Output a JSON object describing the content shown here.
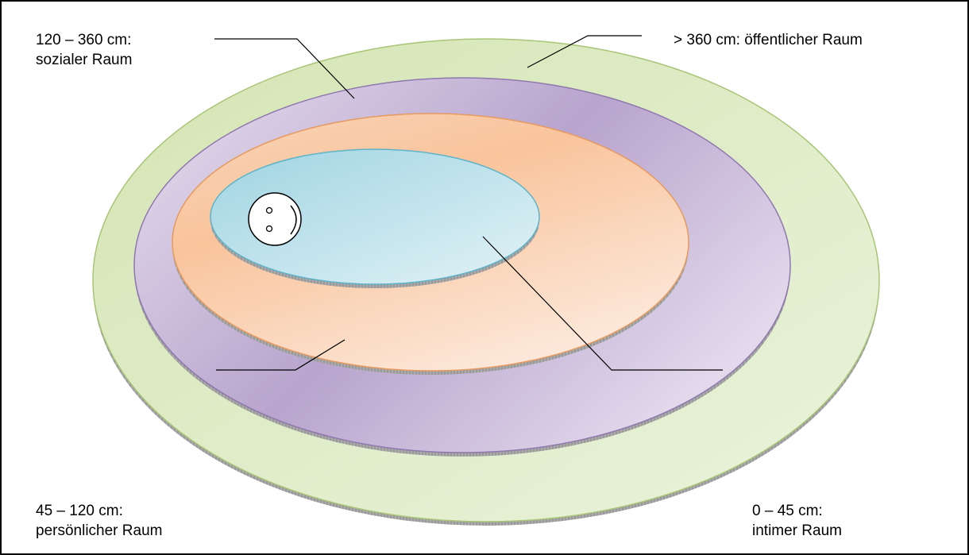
{
  "zones": [
    {
      "key": "public",
      "range": "> 360 cm: öffentlicher Raum",
      "name": "",
      "color": "#c9dca2"
    },
    {
      "key": "social",
      "range": "120 – 360 cm:",
      "name": "sozialer Raum",
      "color": "#b9a6cf"
    },
    {
      "key": "personal",
      "range": "45 – 120 cm:",
      "name": "persönlicher Raum",
      "color": "#f9c9a1"
    },
    {
      "key": "intimate",
      "range": "0 – 45 cm:",
      "name": "intimer Raum",
      "color": "#a9dae6"
    }
  ],
  "center_icon": "smiley-face-icon"
}
